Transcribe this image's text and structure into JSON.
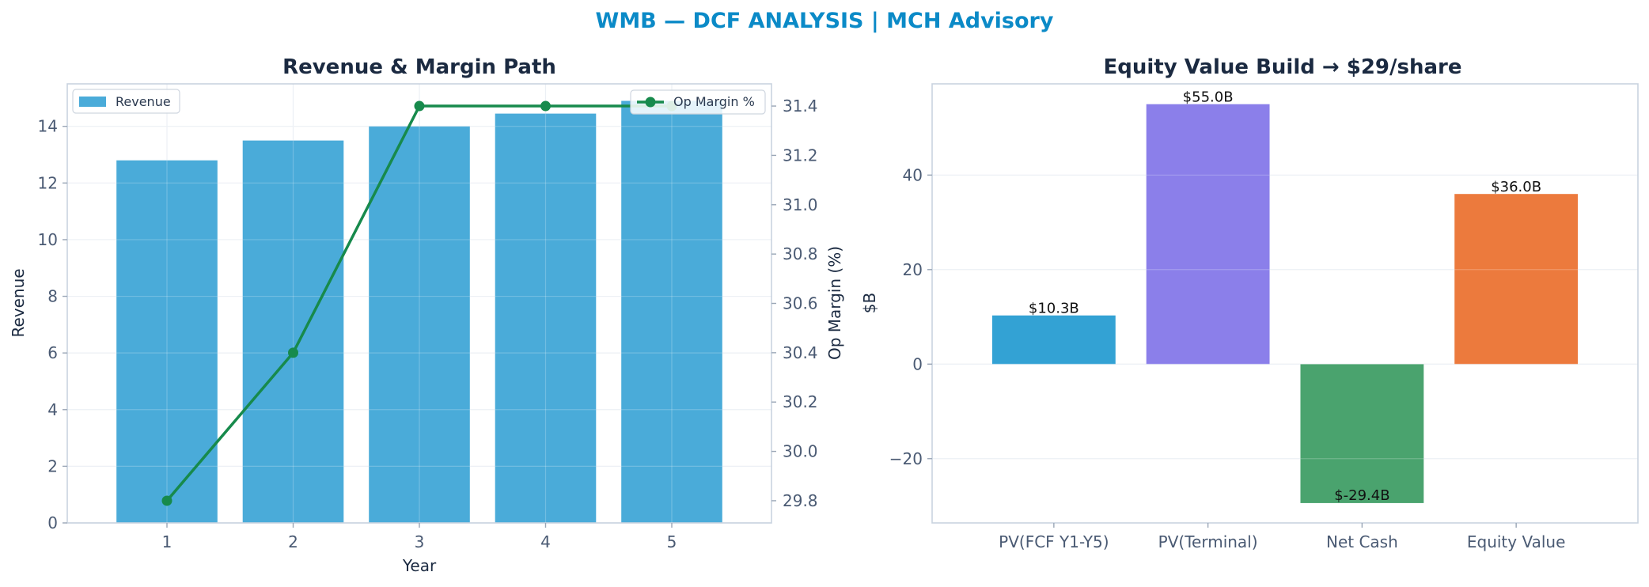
{
  "figure": {
    "suptitle": "WMB — DCF ANALYSIS | MCH Advisory"
  },
  "colors": {
    "revenue_bar": "#4aabd9",
    "margin_line": "#178a4c",
    "pv_fcf": "#33a2d4",
    "pv_terminal": "#8b7fea",
    "net_cash": "#4aa36e",
    "equity_value": "#ec7a3d"
  },
  "chart_data": [
    {
      "type": "bar",
      "title": "Revenue & Margin Path",
      "xlabel": "Year",
      "ylabel": "Revenue",
      "y2label": "Op Margin (%)",
      "categories": [
        "1",
        "2",
        "3",
        "4",
        "5"
      ],
      "ylim": [
        0,
        15.5
      ],
      "y_ticks": [
        0,
        2,
        4,
        6,
        8,
        10,
        12,
        14
      ],
      "y2lim": [
        29.71,
        31.49
      ],
      "y2_ticks": [
        "29.8",
        "30.0",
        "30.2",
        "30.4",
        "30.6",
        "30.8",
        "31.0",
        "31.2",
        "31.4"
      ],
      "grid": true,
      "series": [
        {
          "name": "Revenue",
          "type": "bar",
          "axis": "left",
          "values": [
            12.8,
            13.5,
            14.0,
            14.45,
            14.9
          ]
        },
        {
          "name": "Op Margin %",
          "type": "line",
          "axis": "right",
          "values": [
            29.8,
            30.4,
            31.4,
            31.4,
            31.4
          ]
        }
      ],
      "legend": [
        {
          "label": "Revenue",
          "placement": "top-left"
        },
        {
          "label": "Op Margin %",
          "placement": "top-right"
        }
      ]
    },
    {
      "type": "bar",
      "title": "Equity Value Build → $29/share",
      "xlabel": "",
      "ylabel": "$B",
      "categories": [
        "PV(FCF Y1-Y5)",
        "PV(Terminal)",
        "Net Cash",
        "Equity Value"
      ],
      "values": [
        10.3,
        55.0,
        -29.4,
        36.0
      ],
      "data_labels": [
        "$10.3B",
        "$55.0B",
        "$-29.4B",
        "$36.0B"
      ],
      "ylim": [
        -33.6,
        59.3
      ],
      "y_ticks": [
        -20,
        0,
        20,
        40
      ],
      "y_tick_labels": [
        "−20",
        "0",
        "20",
        "40"
      ],
      "grid": true
    }
  ]
}
